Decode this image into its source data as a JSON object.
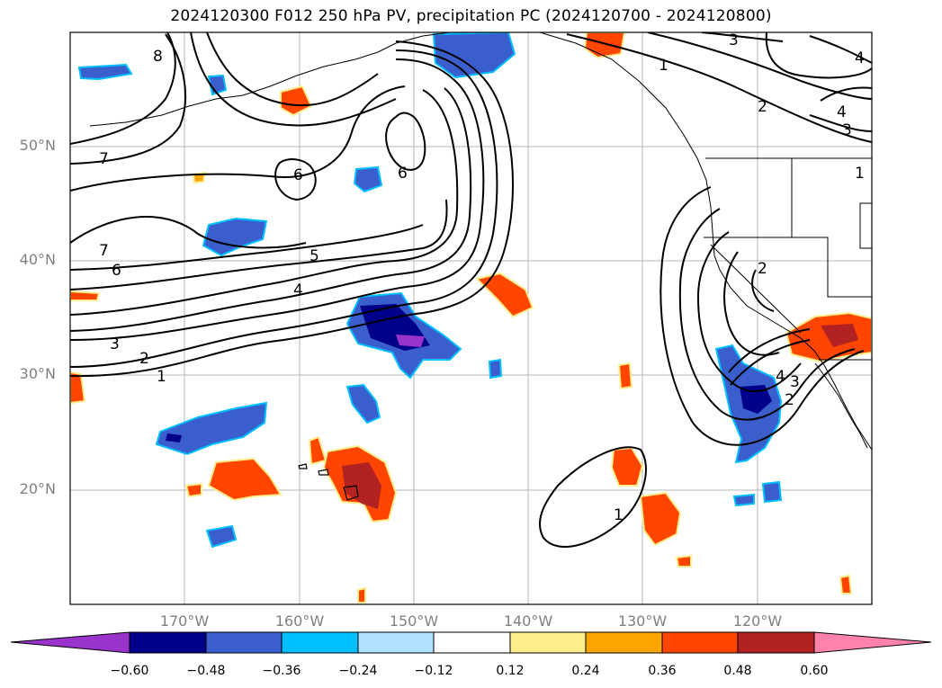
{
  "title": "2024120300 F012 250 hPa PV, precipitation PC (2024120700 - 2024120800)",
  "map": {
    "projection": "plate-carree",
    "lon_range": [
      -180,
      -110
    ],
    "lat_range": [
      10,
      60
    ],
    "gridlines": true,
    "lat_ticks": [
      {
        "value": 50,
        "label": "50°N"
      },
      {
        "value": 40,
        "label": "40°N"
      },
      {
        "value": 30,
        "label": "30°N"
      },
      {
        "value": 20,
        "label": "20°N"
      }
    ],
    "lon_ticks": [
      {
        "value": -170,
        "label": "170°W"
      },
      {
        "value": -160,
        "label": "160°W"
      },
      {
        "value": -150,
        "label": "150°W"
      },
      {
        "value": -140,
        "label": "140°W"
      },
      {
        "value": -130,
        "label": "130°W"
      },
      {
        "value": -120,
        "label": "120°W"
      }
    ],
    "contour_labels": [
      "1",
      "2",
      "3",
      "4",
      "5",
      "6",
      "7",
      "8"
    ]
  },
  "colorbar": {
    "extend": "both",
    "ticks": [
      "−0.60",
      "−0.48",
      "−0.36",
      "−0.24",
      "−0.12",
      "0.12",
      "0.24",
      "0.36",
      "0.48",
      "0.60"
    ],
    "colors": {
      "under": "#9933cc",
      "-0.60": "#00008b",
      "-0.48": "#3a5fcd",
      "-0.36": "#00bfff",
      "-0.24": "#b0e2ff",
      "-0.12": "#ffffff",
      "0.12": "#ffec8b",
      "0.24": "#ffa500",
      "0.36": "#ff4500",
      "0.48": "#b22222",
      "over": "#ff82ab"
    }
  }
}
